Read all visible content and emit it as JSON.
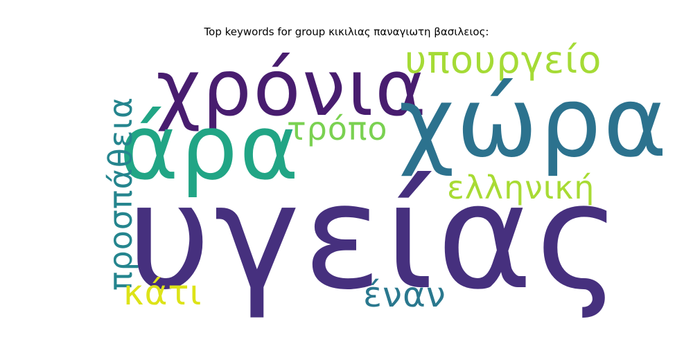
{
  "title": "Top keywords for group κικιλιας παναγιωτη βασιλειος:",
  "words": {
    "ygeias": {
      "text": "υγείας",
      "color": "#46307e"
    },
    "xwra": {
      "text": "χώρα",
      "color": "#2c728e"
    },
    "ara": {
      "text": "άρα",
      "color": "#21a585"
    },
    "xronia": {
      "text": "χρόνια",
      "color": "#481d6f"
    },
    "ypourgeio": {
      "text": "υπουργείο",
      "color": "#a5db36"
    },
    "tropo": {
      "text": "τρόπο",
      "color": "#7ad151"
    },
    "ellhnikh": {
      "text": "ελληνική",
      "color": "#a8db34"
    },
    "prospatheia": {
      "text": "προσπάθεια",
      "color": "#25858e"
    },
    "kati": {
      "text": "κάτι",
      "color": "#dde318"
    },
    "enan": {
      "text": "έναν",
      "color": "#2a788e"
    }
  }
}
